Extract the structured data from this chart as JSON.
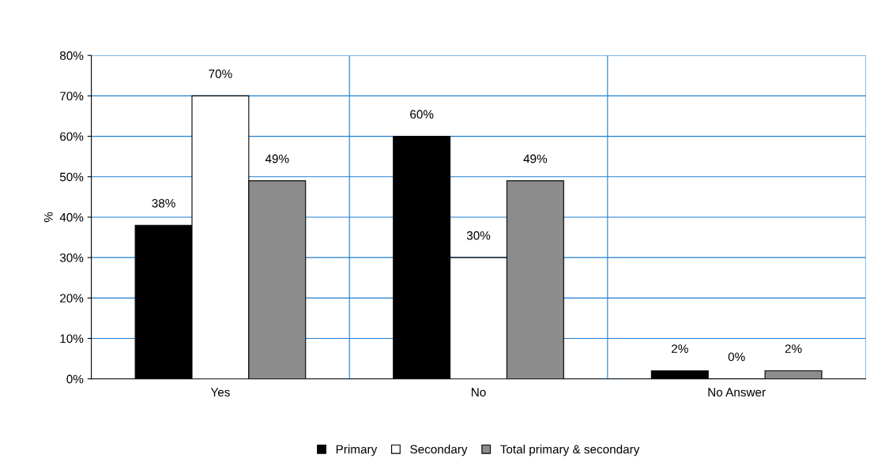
{
  "chart_data": {
    "type": "bar",
    "ylabel": "%",
    "categories": [
      "Yes",
      "No",
      "No Answer"
    ],
    "series": [
      {
        "name": "Primary",
        "color": "#000000",
        "values": [
          38,
          60,
          2
        ],
        "value_labels": [
          "38%",
          "60%",
          "2%"
        ]
      },
      {
        "name": "Secondary",
        "color": "#ffffff",
        "values": [
          70,
          30,
          0
        ],
        "value_labels": [
          "70%",
          "30%",
          "0%"
        ]
      },
      {
        "name": "Total primary & secondary",
        "color": "#8c8c8c",
        "values": [
          49,
          49,
          2
        ],
        "value_labels": [
          "49%",
          "49%",
          "2%"
        ]
      }
    ],
    "ylim": [
      0,
      80
    ],
    "yticks": [
      {
        "value": 0,
        "label": "0%"
      },
      {
        "value": 10,
        "label": "10%"
      },
      {
        "value": 20,
        "label": "20%"
      },
      {
        "value": 30,
        "label": "30%"
      },
      {
        "value": 40,
        "label": "40%"
      },
      {
        "value": 50,
        "label": "50%"
      },
      {
        "value": 60,
        "label": "60%"
      },
      {
        "value": 70,
        "label": "70%"
      },
      {
        "value": 80,
        "label": "80%"
      }
    ],
    "grid": true,
    "legend": "bottom"
  }
}
